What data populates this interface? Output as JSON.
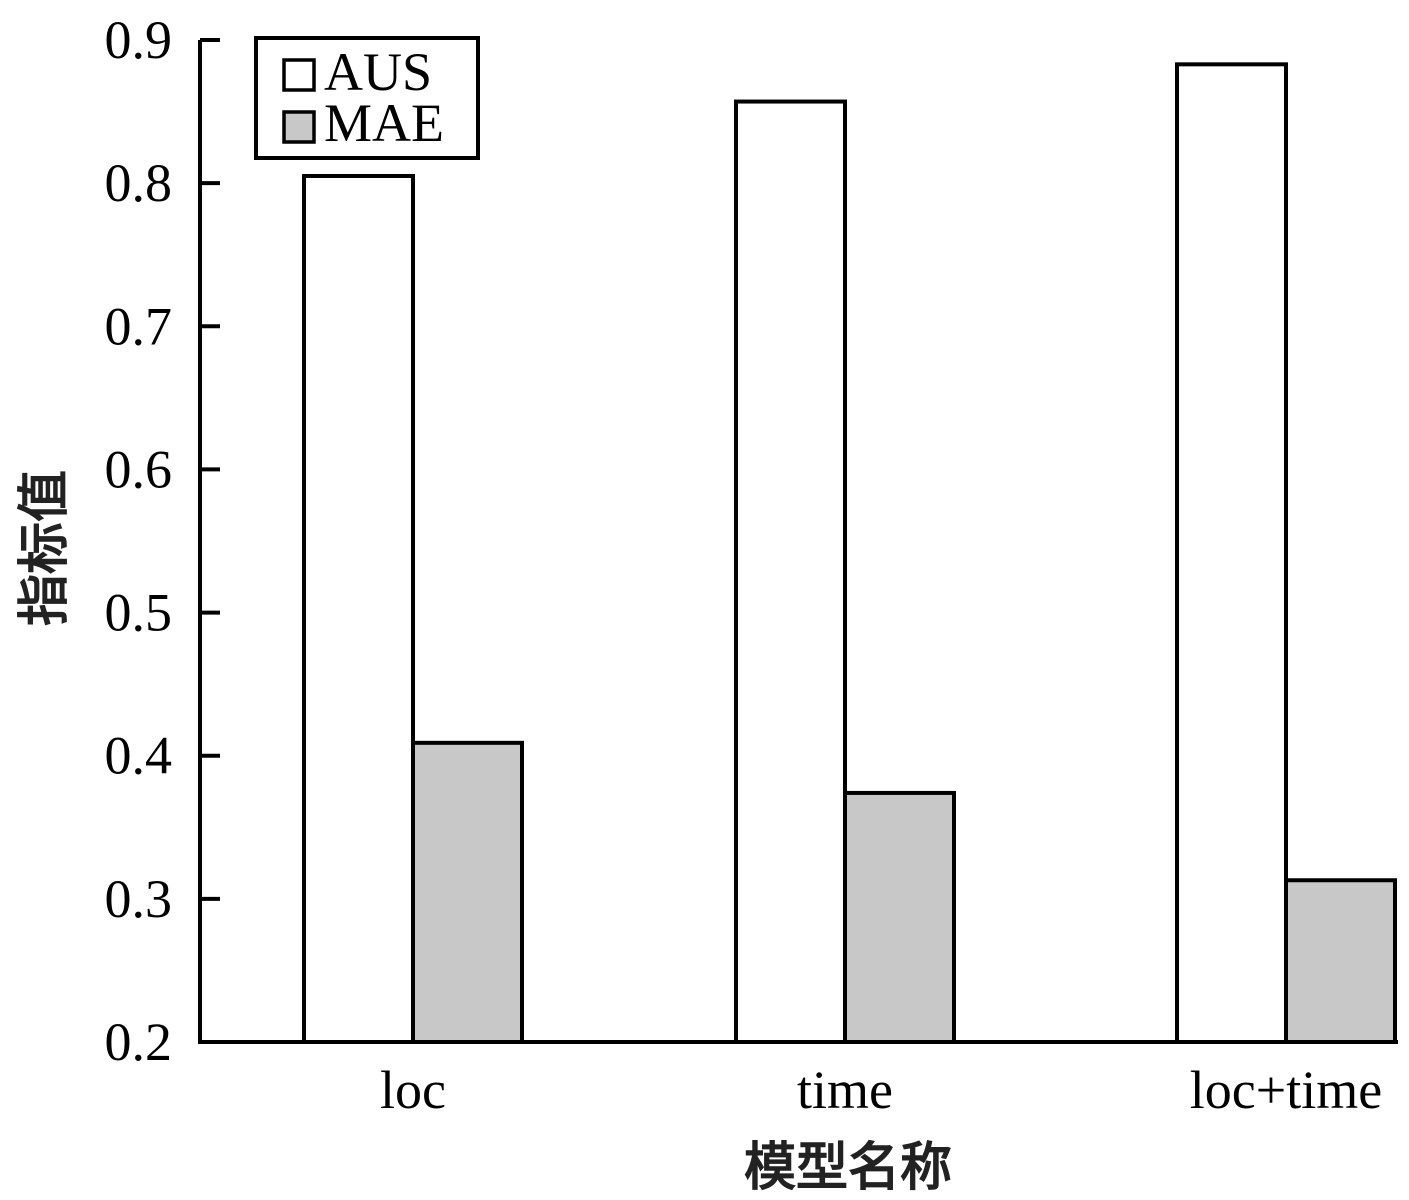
{
  "chart_data": {
    "type": "bar",
    "xlabel": "模型名称",
    "ylabel": "指标值",
    "categories": [
      "loc",
      "time",
      "loc+time"
    ],
    "series": [
      {
        "name": "AUS",
        "values": [
          0.805,
          0.857,
          0.883
        ],
        "color": "#ffffff"
      },
      {
        "name": "MAE",
        "values": [
          0.409,
          0.374,
          0.313
        ],
        "color": "#c8c8c8"
      }
    ],
    "ylim": [
      0.2,
      0.9
    ],
    "yticks": [
      "0.2",
      "0.3",
      "0.4",
      "0.5",
      "0.6",
      "0.7",
      "0.8",
      "0.9"
    ],
    "grid": false,
    "legend_position": "top-left"
  }
}
